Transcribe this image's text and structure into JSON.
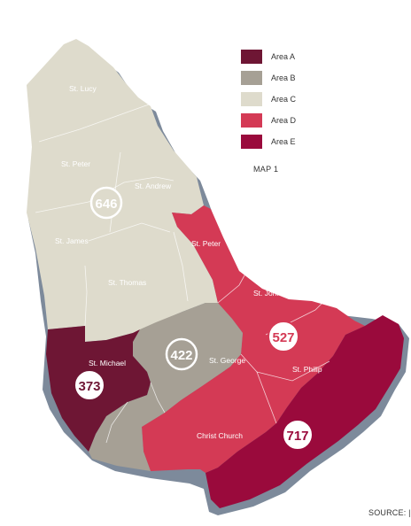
{
  "legend": {
    "items": [
      {
        "label": "Area A",
        "color": "#6e1634"
      },
      {
        "label": "Area B",
        "color": "#a6a095"
      },
      {
        "label": "Area C",
        "color": "#dedbcc"
      },
      {
        "label": "Area D",
        "color": "#d43a55"
      },
      {
        "label": "Area E",
        "color": "#9a0a3c"
      }
    ]
  },
  "map_label": "MAP 1",
  "source": "SOURCE: |",
  "parishes": {
    "st_lucy": "St. Lucy",
    "st_peter_north": "St. Peter",
    "st_andrew": "St. Andrew",
    "st_james": "St. James",
    "st_thomas": "St. Thomas",
    "st_peter_d": "St. Peter",
    "st_john": "St. John",
    "st_michael": "St. Michael",
    "st_george": "St. George",
    "st_philip": "St. Philip",
    "christ_church": "Christ Church"
  },
  "badges": {
    "c": "646",
    "b": "422",
    "d": "527",
    "a": "373",
    "e": "717"
  }
}
